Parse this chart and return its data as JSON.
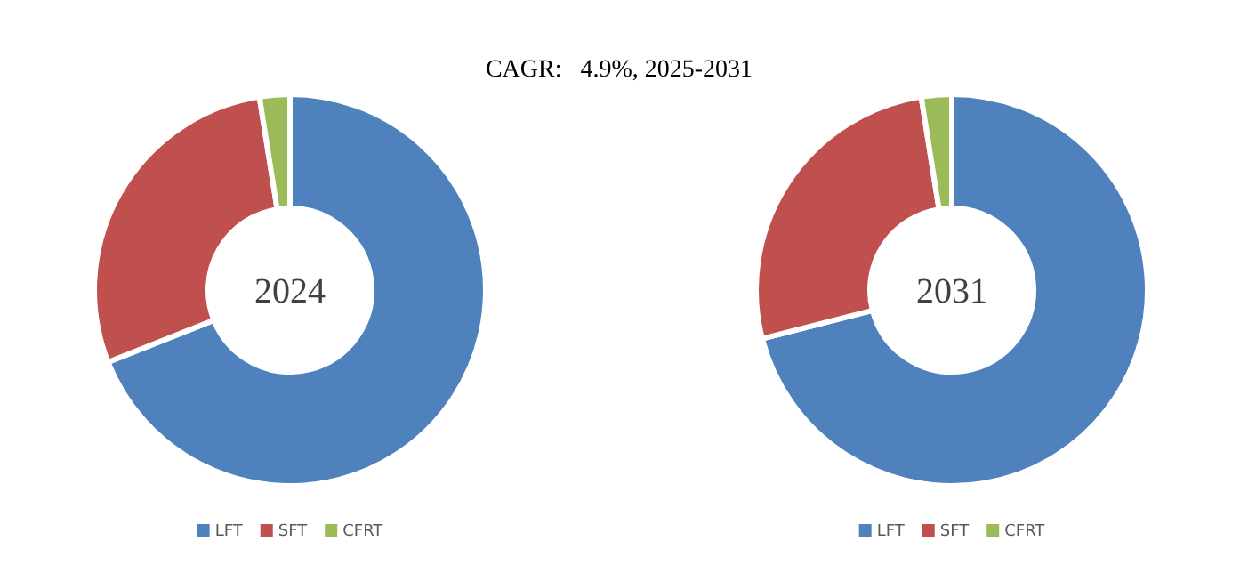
{
  "chart_data": [
    {
      "type": "donut",
      "title": "2024",
      "annotations": [
        "CAGR:   4.9%, 2025-2031"
      ],
      "categories": [
        "LFT",
        "SFT",
        "CFRT"
      ],
      "values": [
        69,
        28.5,
        2.5
      ],
      "colors": [
        "#4f81bd",
        "#c0504d",
        "#9bbb59"
      ],
      "legend": "bottom"
    },
    {
      "type": "donut",
      "title": "2031",
      "categories": [
        "LFT",
        "SFT",
        "CFRT"
      ],
      "values": [
        71,
        26.5,
        2.5
      ],
      "colors": [
        "#4f81bd",
        "#c0504d",
        "#9bbb59"
      ],
      "legend": "bottom"
    }
  ]
}
